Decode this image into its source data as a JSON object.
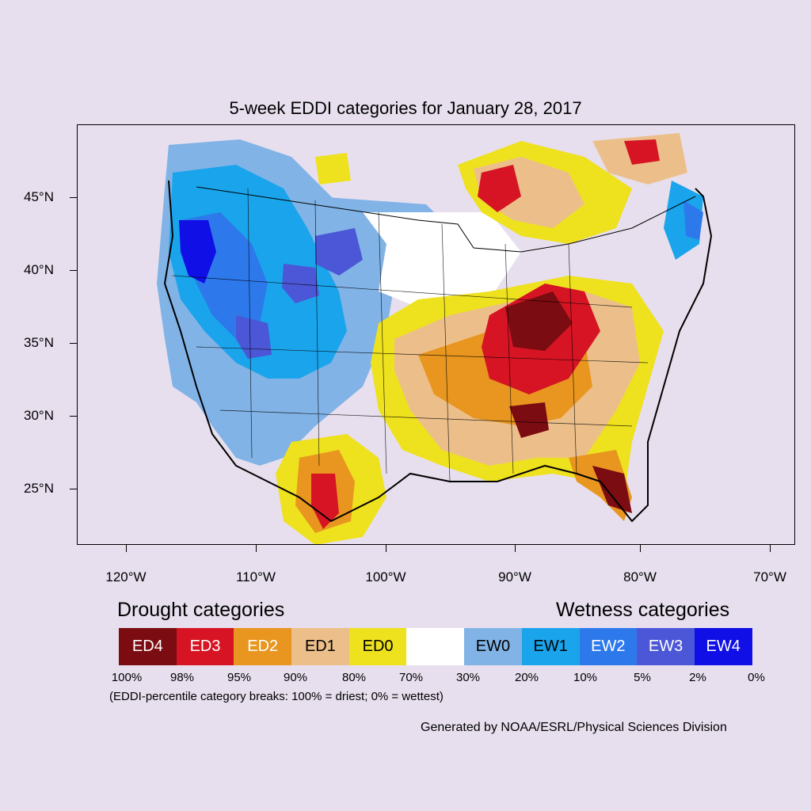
{
  "title": "5-week EDDI categories for January 28, 2017",
  "latitude_labels": [
    "45°N",
    "40°N",
    "35°N",
    "30°N",
    "25°N"
  ],
  "longitude_labels": [
    "120°W",
    "110°W",
    "100°W",
    "90°W",
    "80°W",
    "70°W"
  ],
  "legend": {
    "drought_heading": "Drought categories",
    "wetness_heading": "Wetness categories",
    "categories": [
      {
        "label": "ED4",
        "color": "#7a0c12",
        "text_color": "#ffffff"
      },
      {
        "label": "ED3",
        "color": "#d61423",
        "text_color": "#ffffff"
      },
      {
        "label": "ED2",
        "color": "#e8961f",
        "text_color": "#ffffff"
      },
      {
        "label": "ED1",
        "color": "#ecbf8a",
        "text_color": "#000000"
      },
      {
        "label": "ED0",
        "color": "#eee11e",
        "text_color": "#000000"
      },
      {
        "label": "",
        "color": "#ffffff",
        "text_color": "#000000"
      },
      {
        "label": "EW0",
        "color": "#81b3e6",
        "text_color": "#000000"
      },
      {
        "label": "EW1",
        "color": "#1aa4eb",
        "text_color": "#000000"
      },
      {
        "label": "EW2",
        "color": "#2d79ec",
        "text_color": "#ffffff"
      },
      {
        "label": "EW3",
        "color": "#4b57d6",
        "text_color": "#ffffff"
      },
      {
        "label": "EW4",
        "color": "#0f0fe6",
        "text_color": "#ffffff"
      }
    ],
    "percentile_breaks": [
      "100%",
      "98%",
      "95%",
      "90%",
      "80%",
      "70%",
      "30%",
      "20%",
      "10%",
      "5%",
      "2%",
      "0%"
    ],
    "note": "(EDDI-percentile category breaks: 100% = driest; 0% = wettest)"
  },
  "credit": "Generated by NOAA/ESRL/Physical Sciences Division"
}
